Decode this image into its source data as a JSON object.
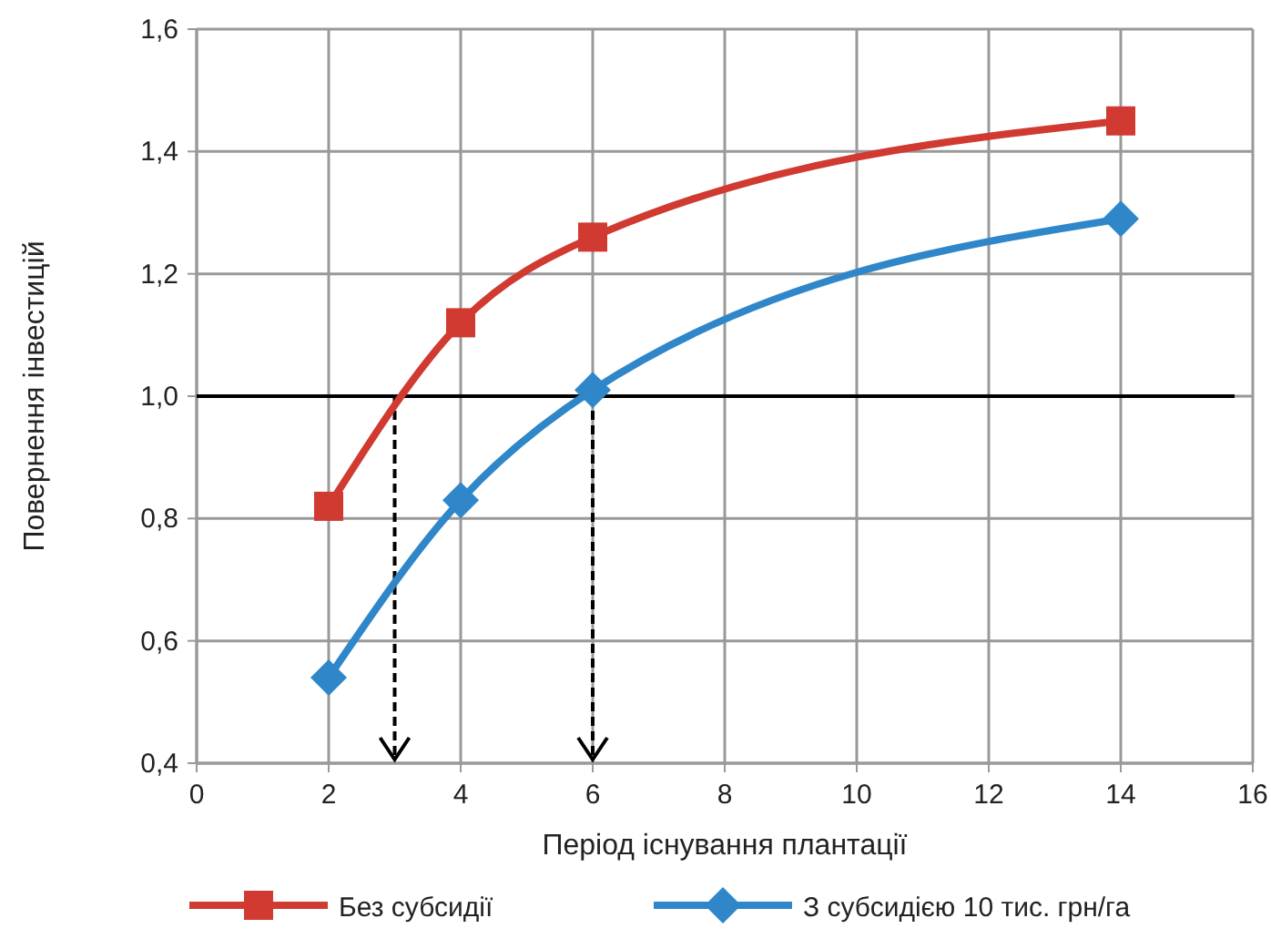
{
  "chart_data": {
    "type": "line",
    "xlabel": "Період існування плантації",
    "ylabel": "Повернення інвестицій",
    "xlim": [
      0,
      16
    ],
    "xticks": [
      0,
      2,
      4,
      6,
      8,
      10,
      12,
      14,
      16
    ],
    "ylim": [
      0.4,
      1.6
    ],
    "yticks": [
      {
        "value": 0.4,
        "label": "0,4"
      },
      {
        "value": 0.6,
        "label": "0,6"
      },
      {
        "value": 0.8,
        "label": "0,8"
      },
      {
        "value": 1.0,
        "label": "1,0"
      },
      {
        "value": 1.2,
        "label": "1,2"
      },
      {
        "value": 1.4,
        "label": "1,4"
      },
      {
        "value": 1.6,
        "label": "1,6"
      }
    ],
    "grid": true,
    "legend": "bottom",
    "line_style": "solid",
    "series": [
      {
        "name": "Без субсидії",
        "color": "#d03a30",
        "marker": "square",
        "x": [
          2,
          4,
          6,
          14
        ],
        "values": [
          0.82,
          1.12,
          1.26,
          1.45
        ]
      },
      {
        "name": "З субсидією 10 тис. грн/га",
        "color": "#2f87c9",
        "marker": "diamond",
        "x": [
          2,
          4,
          6,
          14
        ],
        "values": [
          0.54,
          0.83,
          1.01,
          1.29
        ]
      }
    ],
    "ref_lines": [
      {
        "axis": "y",
        "value": 1.0,
        "color": "#000000",
        "line_style": "solid"
      },
      {
        "axis": "x",
        "value": 3,
        "color": "#000000",
        "line_style": "dashed"
      },
      {
        "axis": "x",
        "value": 6,
        "color": "#000000",
        "line_style": "dashed"
      }
    ]
  }
}
